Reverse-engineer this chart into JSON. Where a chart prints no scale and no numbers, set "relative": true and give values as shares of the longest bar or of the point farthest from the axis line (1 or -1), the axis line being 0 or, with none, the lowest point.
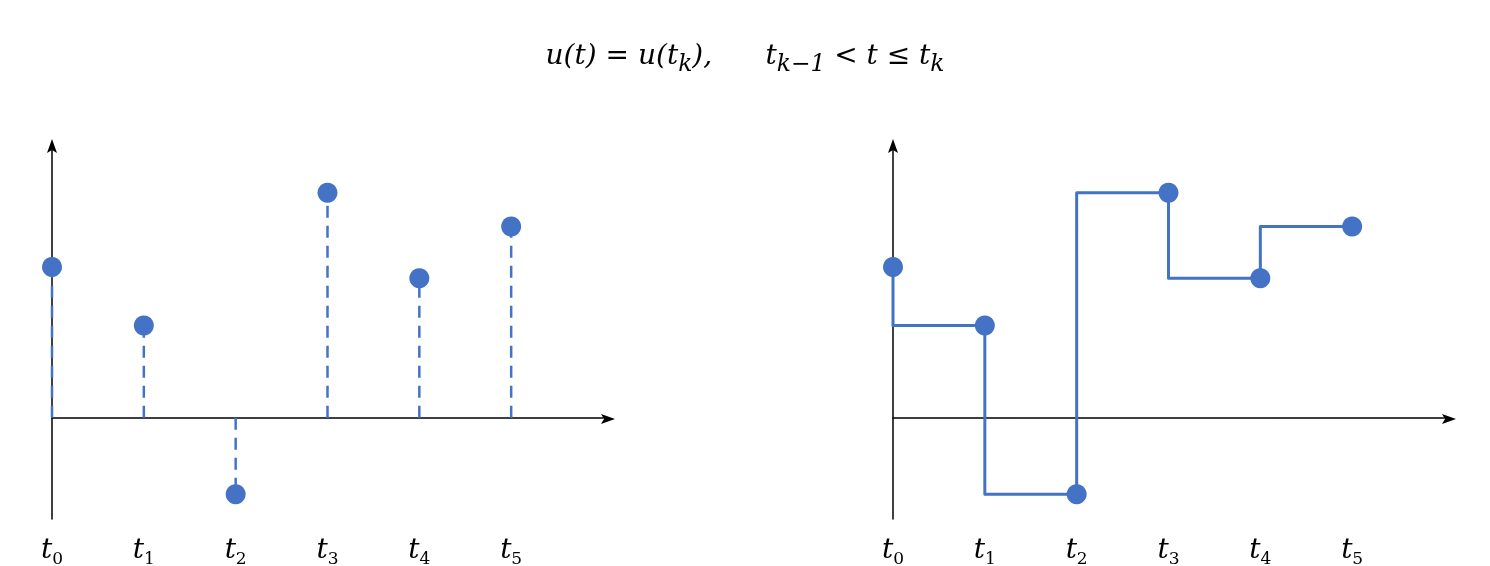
{
  "chart_data": [
    {
      "type": "lollipop",
      "title": "u(t) = u(t$_{k}$),      t$_{k−1}$ < t ≤ t$_{k}$",
      "categories": [
        "t$_{0}$",
        "t$_{1}$",
        "t$_{2}$",
        "t$_{3}$",
        "t$_{4}$",
        "t$_{5}$"
      ],
      "values": [
        0.67,
        0.41,
        -0.34,
        1,
        0.62,
        0.85
      ],
      "color": "#4472c4",
      "relative": true,
      "marker": "circle",
      "line_style": "dashed"
    },
    {
      "type": "step",
      "categories": [
        "t$_{0}$",
        "t$_{1}$",
        "t$_{2}$",
        "t$_{3}$",
        "t$_{4}$",
        "t$_{5}$"
      ],
      "values": [
        0.67,
        0.41,
        -0.34,
        1,
        0.62,
        0.85
      ],
      "color": "#4472c4",
      "relative": true,
      "marker": "circle",
      "line_style": "solid"
    }
  ]
}
